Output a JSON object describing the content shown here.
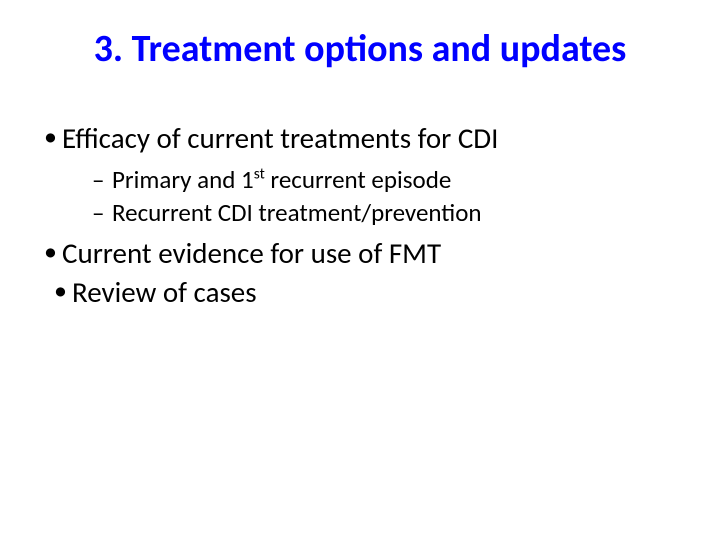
{
  "slide": {
    "title": "3. Treatment options and updates",
    "title_color": "#0000ff",
    "body_color": "#000000",
    "background_color": "#ffffff",
    "bullets": [
      {
        "text": "Efficacy of current treatments for CDI",
        "sub": [
          {
            "pre": "Primary and 1",
            "sup": "st",
            "post": " recurrent episode"
          },
          {
            "text": "Recurrent CDI treatment/prevention"
          }
        ]
      },
      {
        "text": "Current evidence for use of FMT"
      },
      {
        "text": "Review of cases",
        "inset": true
      }
    ],
    "fonts": {
      "title_size_pt": 38,
      "l1_size_pt": 29,
      "l2_size_pt": 25,
      "family": "Calibri"
    }
  }
}
